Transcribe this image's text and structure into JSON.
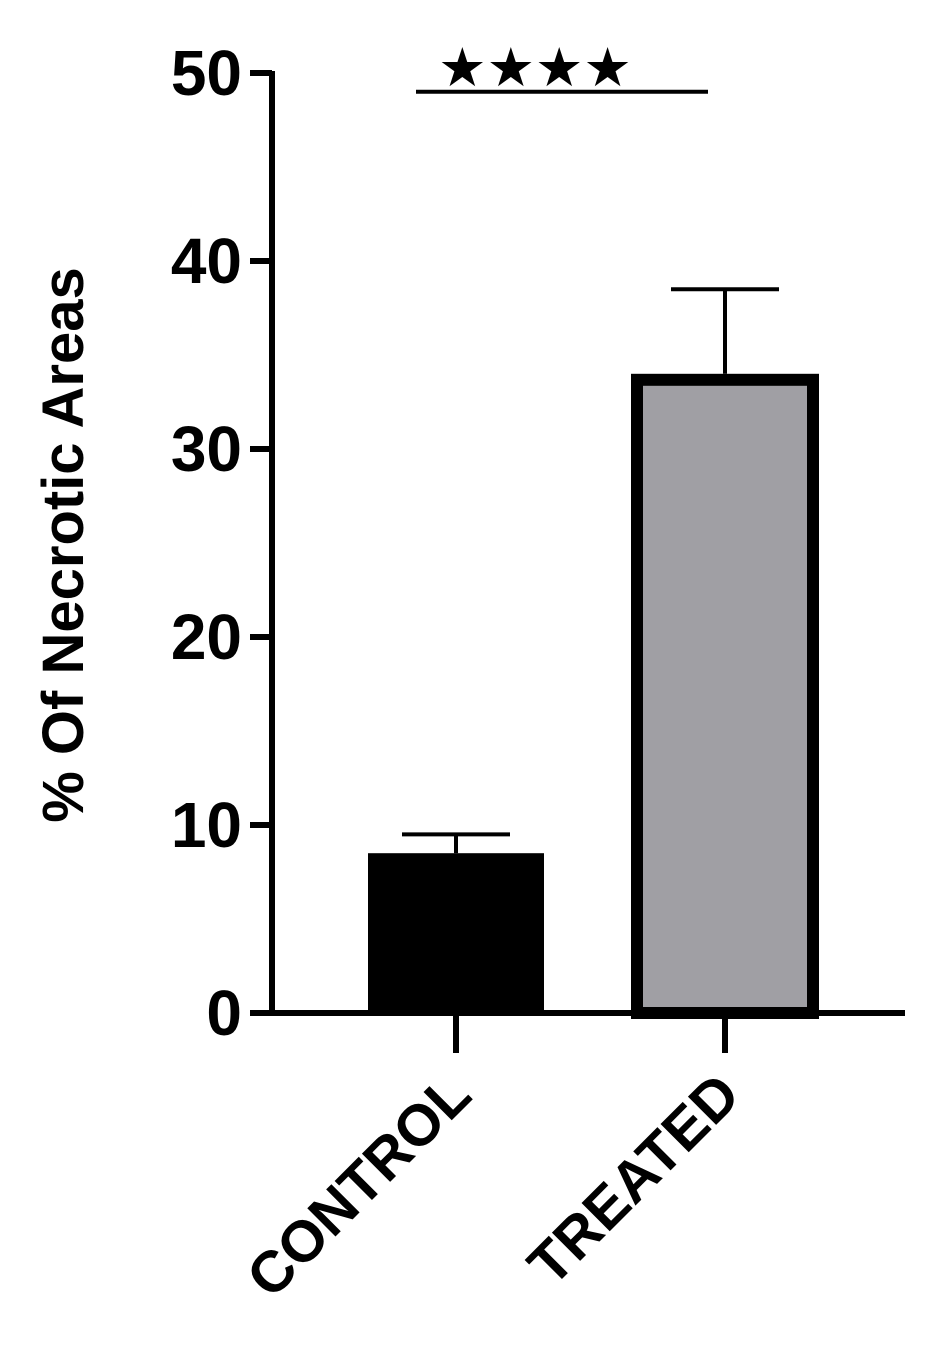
{
  "chart_data": {
    "type": "bar",
    "categories": [
      "CONTROL",
      "TREATED"
    ],
    "values": [
      8.5,
      34
    ],
    "error_upper": [
      9.5,
      38.5
    ],
    "bar_fill_colors": [
      "#000000",
      "#a09fa4"
    ],
    "bar_stroke_color": "#000000",
    "ylabel": "% Of Necrotic Areas",
    "xlabel": "",
    "ylim": [
      0,
      50
    ],
    "yticks": [
      0,
      10,
      20,
      30,
      40,
      50
    ],
    "ytick_labels": [
      "0",
      "10",
      "20",
      "30",
      "40",
      "50"
    ],
    "grid": false,
    "significance": {
      "label": "★★★★",
      "between": [
        "CONTROL",
        "TREATED"
      ],
      "y": 49
    }
  }
}
